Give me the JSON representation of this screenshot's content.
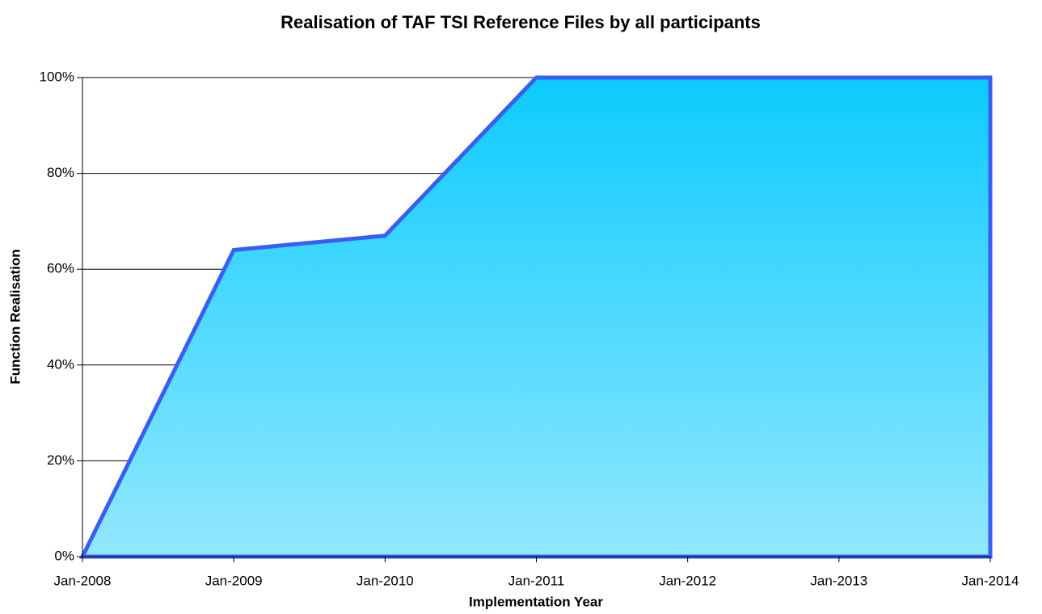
{
  "chart_data": {
    "type": "area",
    "title": "Realisation of TAF TSI Reference Files by all participants",
    "x_label": "Implementation Year",
    "y_label": "Function Realisation",
    "categories": [
      "Jan-2008",
      "Jan-2009",
      "Jan-2010",
      "Jan-2011",
      "Jan-2012",
      "Jan-2013",
      "Jan-2014"
    ],
    "values": [
      0,
      64,
      67,
      100,
      100,
      100,
      100
    ],
    "color": "#3a5ff0",
    "ylim": [
      0,
      100
    ],
    "yticks": [
      {
        "value": 0,
        "label": "0%"
      },
      {
        "value": 20,
        "label": "20%"
      },
      {
        "value": 40,
        "label": "40%"
      },
      {
        "value": 60,
        "label": "60%"
      },
      {
        "value": 80,
        "label": "80%"
      },
      {
        "value": 100,
        "label": "100%"
      }
    ],
    "grid": true
  }
}
